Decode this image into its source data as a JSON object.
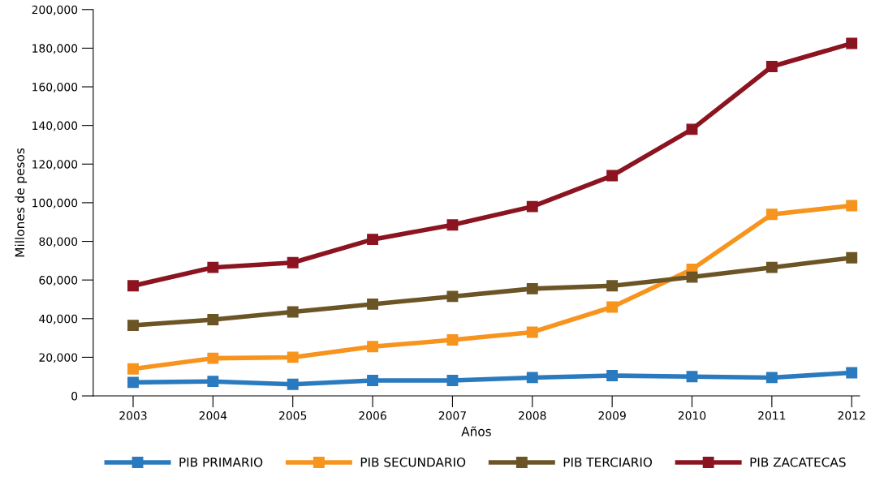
{
  "chart_data": {
    "type": "line",
    "xlabel": "Años",
    "ylabel": "Millones de pesos",
    "x": [
      2003,
      2004,
      2005,
      2006,
      2007,
      2008,
      2009,
      2010,
      2011,
      2012
    ],
    "series": [
      {
        "name": "PIB PRIMARIO",
        "color": "#2a7abf",
        "values": [
          7000,
          7500,
          6000,
          8000,
          8000,
          9500,
          10500,
          10000,
          9500,
          12000
        ]
      },
      {
        "name": "PIB SECUNDARIO",
        "color": "#f7941d",
        "values": [
          14000,
          19500,
          20000,
          25500,
          29000,
          33000,
          46000,
          65500,
          94000,
          98500
        ]
      },
      {
        "name": "PIB TERCIARIO",
        "color": "#6b5526",
        "values": [
          36500,
          39500,
          43500,
          47500,
          51500,
          55500,
          57000,
          61500,
          66500,
          71500
        ]
      },
      {
        "name": "PIB ZACATECAS",
        "color": "#8b1420",
        "values": [
          57000,
          66500,
          69000,
          81000,
          88500,
          98000,
          114000,
          138000,
          170500,
          182500
        ]
      }
    ],
    "xlim": [
      2002.5,
      2012.1
    ],
    "xticks": [
      2003,
      2004,
      2005,
      2006,
      2007,
      2008,
      2009,
      2010,
      2011,
      2012
    ],
    "ylim": [
      0,
      200000
    ],
    "yticks": [
      0,
      {
        "value": 20000,
        "label": "20,000"
      },
      {
        "value": 40000,
        "label": "40,000"
      },
      {
        "value": 60000,
        "label": "60,000"
      },
      {
        "value": 80000,
        "label": "80,000"
      },
      {
        "value": 100000,
        "label": "100,000"
      },
      {
        "value": 120000,
        "label": "120,000"
      },
      {
        "value": 140000,
        "label": "140,000"
      },
      {
        "value": 160000,
        "label": "160,000"
      },
      {
        "value": 180000,
        "label": "180,000"
      },
      {
        "value": 200000,
        "label": "200,000"
      }
    ],
    "grid": false,
    "legend": "bottom",
    "marker": "square",
    "line_style": "solid"
  }
}
